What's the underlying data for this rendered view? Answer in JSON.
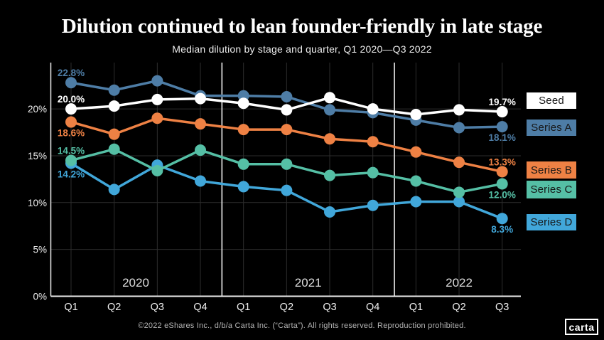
{
  "title": "Dilution continued to lean founder-friendly in late stage",
  "subtitle": "Median dilution by stage and quarter, Q1 2020—Q3 2022",
  "footer": "©2022 eShares Inc., d/b/a Carta Inc. (“Carta”). All rights reserved. Reproduction prohibited.",
  "logo_text": "carta",
  "colors": {
    "background": "#000000",
    "seed": "#ffffff",
    "series_a": "#4e7da6",
    "series_b": "#ee8144",
    "series_c": "#55bfa5",
    "series_d": "#41a7da",
    "grid": "#2d2d2d",
    "axis": "#ededed",
    "separator": "#ffffff",
    "tick_text": "#f0f0f0",
    "year_text": "#dcdcdc",
    "legend_text": "#161616"
  },
  "chart_data": {
    "type": "line",
    "title": "Dilution continued to lean founder-friendly in late stage",
    "subtitle": "Median dilution by stage and quarter, Q1 2020—Q3 2022",
    "x_labels": [
      "Q1",
      "Q2",
      "Q3",
      "Q4",
      "Q1",
      "Q2",
      "Q3",
      "Q4",
      "Q1",
      "Q2",
      "Q3"
    ],
    "year_groups": [
      {
        "label": "2020",
        "quarters": 4
      },
      {
        "label": "2021",
        "quarters": 4
      },
      {
        "label": "2022",
        "quarters": 3
      }
    ],
    "y_ticks": [
      "0%",
      "5%",
      "10%",
      "15%",
      "20%"
    ],
    "ylim": [
      0,
      25
    ],
    "grid": true,
    "legend_position": "right",
    "legend": [
      "Seed",
      "Series A",
      "Series B",
      "Series C",
      "Series D"
    ],
    "series": [
      {
        "name": "Seed",
        "color_key": "seed",
        "values": [
          20.0,
          20.3,
          21.0,
          21.1,
          20.6,
          19.9,
          21.2,
          20.0,
          19.4,
          19.9,
          19.7
        ],
        "first_label": "20.0%",
        "first_label_pos": "above",
        "last_label": "19.7%",
        "last_label_pos": "above"
      },
      {
        "name": "Series A",
        "color_key": "series_a",
        "values": [
          22.8,
          22.0,
          23.0,
          21.4,
          21.4,
          21.3,
          19.9,
          19.6,
          18.8,
          18.0,
          18.1
        ],
        "first_label": "22.8%",
        "first_label_pos": "above",
        "last_label": "18.1%",
        "last_label_pos": "below"
      },
      {
        "name": "Series B",
        "color_key": "series_b",
        "values": [
          18.6,
          17.3,
          19.0,
          18.4,
          17.8,
          17.8,
          16.8,
          16.5,
          15.4,
          14.3,
          13.3
        ],
        "first_label": "18.6%",
        "first_label_pos": "below",
        "last_label": "13.3%",
        "last_label_pos": "above"
      },
      {
        "name": "Series C",
        "color_key": "series_c",
        "values": [
          14.5,
          15.7,
          13.4,
          15.6,
          14.1,
          14.1,
          12.9,
          13.2,
          12.3,
          11.1,
          12.0
        ],
        "first_label": "14.5%",
        "first_label_pos": "above",
        "last_label": "12.0%",
        "last_label_pos": "below"
      },
      {
        "name": "Series D",
        "color_key": "series_d",
        "values": [
          14.2,
          11.4,
          14.0,
          12.3,
          11.7,
          11.3,
          9.0,
          9.7,
          10.1,
          10.1,
          8.3
        ],
        "first_label": "14.2%",
        "first_label_pos": "below",
        "last_label": "8.3%",
        "last_label_pos": "below"
      }
    ]
  }
}
